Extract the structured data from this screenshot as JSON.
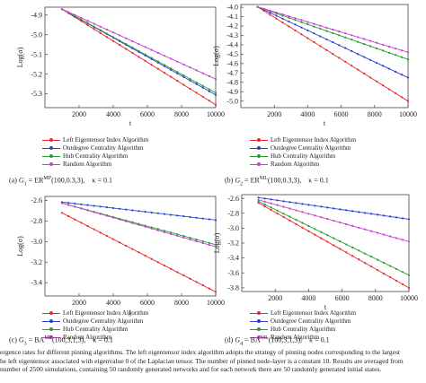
{
  "figure": {
    "caption_lines": [
      "ergence rates for different pinning algorithms. The left eigentensor index algorithm adopts the strategy of pinning nodes corresponding to the largest",
      "he left eigentensor associated with eigenvalue 0 of the Laplacian tensor. The number of pinned node-layer is a constant 10. Results are averaged from",
      "number of 2500 simulations, containing 50 randomly generated networks and for each network there are 50 randomly generated initial states."
    ]
  },
  "colors": {
    "Left Eigentensor Index Algorithm": "#e8292b",
    "Outdegree Centrality Algorithm": "#2b3fcf",
    "Hub Centrality Algorithm": "#2a9a32",
    "Random Algorithm": "#c83fd0"
  },
  "chart_data": [
    {
      "id": "a",
      "type": "line",
      "caption": {
        "prefix": "(a)",
        "graph": "G",
        "sub": "1",
        "model": "ER",
        "sup": "MP",
        "params": "(100,0.3,3),",
        "kappa": "κ = 0.1"
      },
      "xlabel": "t",
      "ylabel": "Log(σ)",
      "xlim": [
        0,
        10000
      ],
      "ylim": [
        -5.37,
        -4.86
      ],
      "xticks": [
        2000,
        4000,
        6000,
        8000,
        10000
      ],
      "yticks": [
        -4.9,
        -5.0,
        -5.1,
        -5.2,
        -5.3
      ],
      "legend": "below",
      "series": [
        {
          "name": "Left Eigentensor Index Algorithm",
          "points": [
            [
              1000,
              -4.87
            ],
            [
              10000,
              -5.355
            ]
          ]
        },
        {
          "name": "Outdegree Centrality Algorithm",
          "points": [
            [
              1000,
              -4.87
            ],
            [
              10000,
              -5.305
            ]
          ]
        },
        {
          "name": "Hub Centrality Algorithm",
          "points": [
            [
              1000,
              -4.87
            ],
            [
              10000,
              -5.295
            ]
          ]
        },
        {
          "name": "Random Algorithm",
          "points": [
            [
              1000,
              -4.87
            ],
            [
              10000,
              -5.225
            ]
          ]
        }
      ]
    },
    {
      "id": "b",
      "type": "line",
      "caption": {
        "prefix": "(b)",
        "graph": "G",
        "sub": "2",
        "model": "ER",
        "sup": "ML",
        "params": "(100,0.3,3),",
        "kappa": "κ = 0.1"
      },
      "xlabel": "t",
      "ylabel": "Log(σ)",
      "xlim": [
        0,
        10000
      ],
      "ylim": [
        -5.07,
        -3.97
      ],
      "xticks": [
        2000,
        4000,
        6000,
        8000,
        10000
      ],
      "yticks": [
        -4.0,
        -4.1,
        -4.2,
        -4.3,
        -4.4,
        -4.5,
        -4.6,
        -4.7,
        -4.8,
        -4.9,
        -5.0
      ],
      "legend": "below",
      "series": [
        {
          "name": "Left Eigentensor Index Algorithm",
          "points": [
            [
              1000,
              -3.995
            ],
            [
              10000,
              -5.0
            ]
          ]
        },
        {
          "name": "Outdegree Centrality Algorithm",
          "points": [
            [
              1000,
              -3.995
            ],
            [
              10000,
              -4.75
            ]
          ]
        },
        {
          "name": "Hub Centrality Algorithm",
          "points": [
            [
              1000,
              -3.995
            ],
            [
              10000,
              -4.555
            ]
          ]
        },
        {
          "name": "Random Algorithm",
          "points": [
            [
              1000,
              -3.995
            ],
            [
              10000,
              -4.48
            ]
          ]
        }
      ]
    },
    {
      "id": "c",
      "type": "line",
      "caption": {
        "prefix": "(c)",
        "graph": "G",
        "sub": "3",
        "model": "BA",
        "sup": "MP",
        "params": "(100,3,1,3),",
        "kappa": "κ = 0.1"
      },
      "xlabel": "t",
      "ylabel": "Log(σ)",
      "xlim": [
        0,
        10000
      ],
      "ylim": [
        -3.53,
        -2.56
      ],
      "xticks": [
        2000,
        4000,
        6000,
        8000,
        10000
      ],
      "yticks": [
        -2.6,
        -2.8,
        -3.0,
        -3.2,
        -3.4
      ],
      "legend": "below",
      "series": [
        {
          "name": "Left Eigentensor Index Algorithm",
          "points": [
            [
              1000,
              -2.72
            ],
            [
              10000,
              -3.49
            ]
          ]
        },
        {
          "name": "Outdegree Centrality Algorithm",
          "points": [
            [
              1000,
              -2.615
            ],
            [
              10000,
              -2.79
            ]
          ]
        },
        {
          "name": "Hub Centrality Algorithm",
          "points": [
            [
              1000,
              -2.625
            ],
            [
              10000,
              -3.03
            ]
          ]
        },
        {
          "name": "Random Algorithm",
          "points": [
            [
              1000,
              -2.625
            ],
            [
              10000,
              -3.05
            ]
          ]
        }
      ]
    },
    {
      "id": "d",
      "type": "line",
      "caption": {
        "prefix": "(d)",
        "graph": "G",
        "sub": "4",
        "model": "BA",
        "sup": "ML",
        "params": "(100,3,1,3),",
        "kappa": "κ = 0.1"
      },
      "xlabel": "t",
      "ylabel": "Log(σ)",
      "xlim": [
        0,
        10000
      ],
      "ylim": [
        -3.85,
        -2.55
      ],
      "xticks": [
        2000,
        4000,
        6000,
        8000,
        10000
      ],
      "yticks": [
        -2.6,
        -2.8,
        -3.0,
        -3.2,
        -3.4,
        -3.6,
        -3.8
      ],
      "legend": "below",
      "series": [
        {
          "name": "Left Eigentensor Index Algorithm",
          "points": [
            [
              1000,
              -2.66
            ],
            [
              10000,
              -3.8
            ]
          ]
        },
        {
          "name": "Outdegree Centrality Algorithm",
          "points": [
            [
              1000,
              -2.59
            ],
            [
              10000,
              -2.88
            ]
          ]
        },
        {
          "name": "Hub Centrality Algorithm",
          "points": [
            [
              1000,
              -2.64
            ],
            [
              10000,
              -3.63
            ]
          ]
        },
        {
          "name": "Random Algorithm",
          "points": [
            [
              1000,
              -2.62
            ],
            [
              10000,
              -3.18
            ]
          ]
        }
      ]
    }
  ]
}
